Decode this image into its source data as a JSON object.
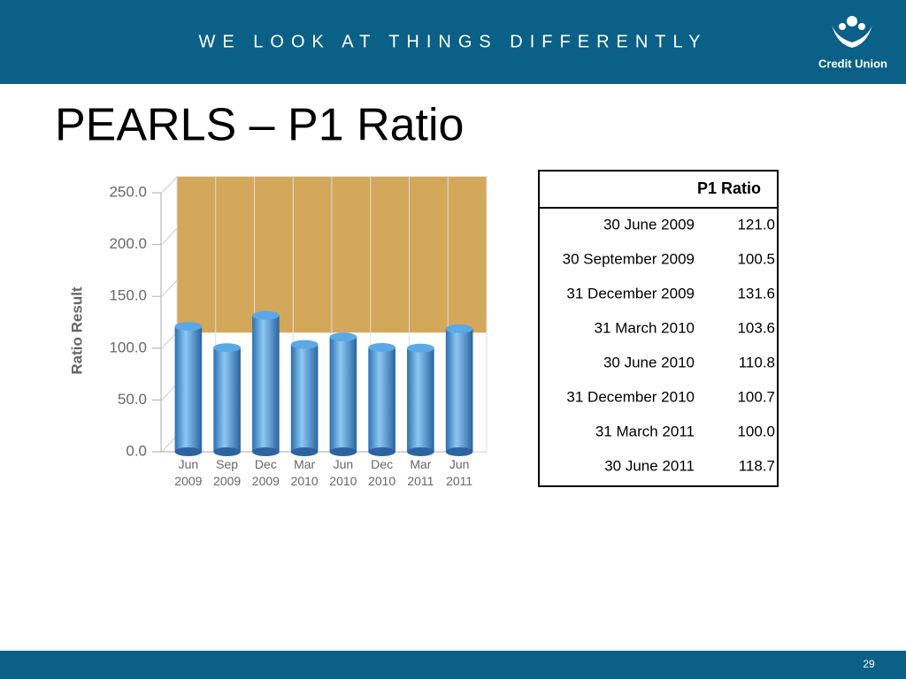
{
  "header": {
    "tagline": "WE LOOK AT THINGS DIFFERENTLY",
    "logo_text": "Credit Union"
  },
  "title": "PEARLS – P1 Ratio",
  "chart_data": {
    "type": "bar",
    "y_label": "Ratio Result",
    "categories": [
      "Jun 2009",
      "Sep 2009",
      "Dec 2009",
      "Mar 2010",
      "Jun 2010",
      "Dec 2010",
      "Mar 2011",
      "Jun 2011"
    ],
    "values": [
      121.0,
      100.5,
      131.6,
      103.6,
      110.8,
      100.7,
      100.0,
      118.7
    ],
    "color": "#5aa9e6",
    "ylim": [
      0,
      250
    ],
    "yticks": [
      {
        "value": 0,
        "label": "0.0"
      },
      {
        "value": 50,
        "label": "50.0"
      },
      {
        "value": 100,
        "label": "100.0"
      },
      {
        "value": 150,
        "label": "150.0"
      },
      {
        "value": 200,
        "label": "200.0"
      },
      {
        "value": 250,
        "label": "250.0"
      }
    ],
    "grid": true,
    "shaded_range": [
      115,
      250
    ],
    "shaded_color": "#d4a85a"
  },
  "table": {
    "header": "P1 Ratio",
    "rows": [
      [
        "30 June 2009",
        "121.0"
      ],
      [
        "30 September 2009",
        "100.5"
      ],
      [
        "31 December 2009",
        "131.6"
      ],
      [
        "31 March 2010",
        "103.6"
      ],
      [
        "30 June 2010",
        "110.8"
      ],
      [
        "31 December 2010",
        "100.7"
      ],
      [
        "31 March 2011",
        "100.0"
      ],
      [
        "30 June 2011",
        "118.7"
      ]
    ]
  },
  "footer": {
    "page_number": "29"
  }
}
